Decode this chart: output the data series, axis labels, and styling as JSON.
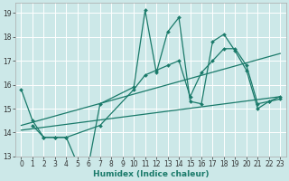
{
  "title": "",
  "xlabel": "Humidex (Indice chaleur)",
  "bg_color": "#cce8e8",
  "grid_color": "#ffffff",
  "line_color": "#1a7a6a",
  "xlim": [
    -0.5,
    23.5
  ],
  "ylim": [
    13.0,
    19.4
  ],
  "yticks": [
    13,
    14,
    15,
    16,
    17,
    18,
    19
  ],
  "xticks": [
    0,
    1,
    2,
    3,
    4,
    5,
    6,
    7,
    8,
    9,
    10,
    11,
    12,
    13,
    14,
    15,
    16,
    17,
    18,
    19,
    20,
    21,
    22,
    23
  ],
  "lines": [
    {
      "x": [
        0,
        1,
        2,
        3,
        4,
        5,
        6,
        7,
        10,
        11,
        12,
        13,
        14,
        15,
        16,
        17,
        18,
        19,
        20,
        21,
        22,
        23
      ],
      "y": [
        15.8,
        14.5,
        13.8,
        13.8,
        13.8,
        12.7,
        12.7,
        15.2,
        15.9,
        19.1,
        16.5,
        18.2,
        18.8,
        15.3,
        15.2,
        17.8,
        18.1,
        17.4,
        16.6,
        15.0,
        15.3,
        15.4
      ]
    },
    {
      "x": [
        1,
        2,
        3,
        4,
        7,
        10,
        11,
        12,
        13,
        14,
        15,
        16,
        17,
        18,
        19,
        20,
        21,
        22,
        23
      ],
      "y": [
        14.3,
        13.8,
        13.8,
        13.8,
        14.3,
        15.8,
        16.4,
        16.6,
        16.8,
        17.0,
        15.5,
        16.5,
        17.0,
        17.5,
        17.5,
        16.8,
        15.2,
        15.3,
        15.5
      ]
    },
    {
      "x": [
        0,
        23
      ],
      "y": [
        14.3,
        17.3
      ]
    },
    {
      "x": [
        0,
        23
      ],
      "y": [
        14.1,
        15.5
      ]
    }
  ],
  "marker": "D",
  "markersize": 2.0,
  "linewidth": 0.9,
  "tick_fontsize": 5.5,
  "xlabel_fontsize": 6.5
}
